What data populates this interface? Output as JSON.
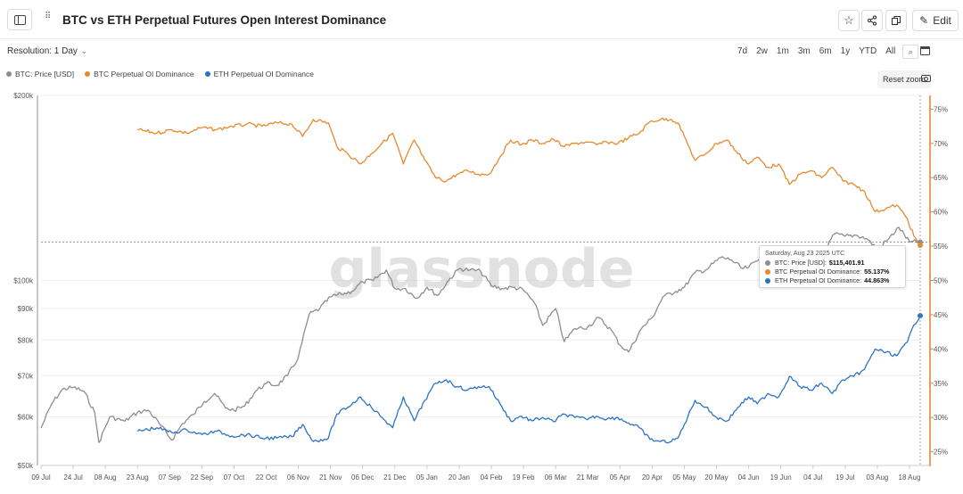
{
  "header": {
    "title": "BTC vs ETH Perpetual Futures Open Interest Dominance",
    "edit_label": "Edit"
  },
  "controls": {
    "resolution_label": "Resolution: 1 Day",
    "ranges": [
      "7d",
      "2w",
      "1m",
      "3m",
      "6m",
      "1y",
      "YTD",
      "All"
    ],
    "reset_zoom": "Reset zoom"
  },
  "legend": [
    {
      "label": "BTC: Price [USD]",
      "color": "#8e8e8e"
    },
    {
      "label": "BTC Perpetual OI Dominance",
      "color": "#e8892c"
    },
    {
      "label": "ETH Perpetual OI Dominance",
      "color": "#2c73c4"
    }
  ],
  "watermark": "glassnode",
  "tooltip": {
    "date": "Saturday, Aug 23 2025 UTC",
    "rows": [
      {
        "label": "BTC: Price [USD]:",
        "value": "$115,401.91",
        "color": "#8e8e8e"
      },
      {
        "label": "BTC Perpetual OI Dominance:",
        "value": "55.137%",
        "color": "#e8892c"
      },
      {
        "label": "ETH Perpetual OI Dominance:",
        "value": "44.863%",
        "color": "#2c73c4"
      }
    ]
  },
  "chart_data": {
    "type": "line",
    "x_tick_labels": [
      "09 Jul",
      "24 Jul",
      "08 Aug",
      "23 Aug",
      "07 Sep",
      "22 Sep",
      "07 Oct",
      "22 Oct",
      "06 Nov",
      "21 Nov",
      "06 Dec",
      "21 Dec",
      "05 Jan",
      "20 Jan",
      "04 Feb",
      "19 Feb",
      "06 Mar",
      "21 Mar",
      "05 Apr",
      "20 Apr",
      "05 May",
      "20 May",
      "04 Jun",
      "19 Jun",
      "04 Jul",
      "19 Jul",
      "03 Aug",
      "18 Aug"
    ],
    "y_left": {
      "scale": "log",
      "ylim": [
        50000,
        200000
      ],
      "ticks": [
        50000,
        60000,
        70000,
        80000,
        90000,
        100000,
        200000
      ],
      "tick_labels": [
        "$50k",
        "$60k",
        "$70k",
        "$80k",
        "$90k",
        "$100k",
        "$200k"
      ]
    },
    "y_right": {
      "ylim": [
        23,
        77
      ],
      "ticks": [
        25,
        30,
        35,
        40,
        45,
        50,
        55,
        60,
        65,
        70,
        75
      ],
      "tick_labels": [
        "25%",
        "30%",
        "35%",
        "40%",
        "45%",
        "50%",
        "55%",
        "60%",
        "65%",
        "70%",
        "75%"
      ]
    },
    "series": [
      {
        "name": "BTC: Price [USD]",
        "axis": "left",
        "color": "#8e8e8e",
        "x": [
          "2024-07-09",
          "2024-07-14",
          "2024-07-19",
          "2024-07-24",
          "2024-07-29",
          "2024-08-03",
          "2024-08-05",
          "2024-08-10",
          "2024-08-17",
          "2024-08-23",
          "2024-08-28",
          "2024-09-03",
          "2024-09-08",
          "2024-09-13",
          "2024-09-18",
          "2024-09-23",
          "2024-09-28",
          "2024-10-03",
          "2024-10-07",
          "2024-10-12",
          "2024-10-17",
          "2024-10-22",
          "2024-10-27",
          "2024-11-01",
          "2024-11-06",
          "2024-11-11",
          "2024-11-16",
          "2024-11-21",
          "2024-11-26",
          "2024-12-01",
          "2024-12-06",
          "2024-12-11",
          "2024-12-17",
          "2024-12-21",
          "2024-12-26",
          "2024-12-31",
          "2025-01-05",
          "2025-01-10",
          "2025-01-15",
          "2025-01-20",
          "2025-01-25",
          "2025-01-30",
          "2025-02-04",
          "2025-02-09",
          "2025-02-14",
          "2025-02-19",
          "2025-02-24",
          "2025-02-28",
          "2025-03-06",
          "2025-03-10",
          "2025-03-15",
          "2025-03-21",
          "2025-03-26",
          "2025-04-01",
          "2025-04-05",
          "2025-04-09",
          "2025-04-15",
          "2025-04-20",
          "2025-04-25",
          "2025-05-01",
          "2025-05-05",
          "2025-05-10",
          "2025-05-15",
          "2025-05-22",
          "2025-05-27",
          "2025-06-01",
          "2025-06-04",
          "2025-06-09",
          "2025-06-14",
          "2025-06-19",
          "2025-06-24",
          "2025-06-29",
          "2025-07-04",
          "2025-07-09",
          "2025-07-14",
          "2025-07-19",
          "2025-07-24",
          "2025-07-29",
          "2025-08-03",
          "2025-08-08",
          "2025-08-13",
          "2025-08-18",
          "2025-08-23"
        ],
        "y": [
          57500,
          63000,
          66500,
          67000,
          66000,
          61000,
          54500,
          60000,
          59000,
          61000,
          61500,
          58000,
          55000,
          58500,
          60500,
          63500,
          65500,
          62000,
          61500,
          62500,
          66000,
          68000,
          67500,
          70000,
          75000,
          88000,
          90000,
          94000,
          95000,
          96000,
          99500,
          100000,
          104000,
          97000,
          97000,
          93500,
          97500,
          94500,
          100000,
          104500,
          104000,
          103500,
          98000,
          97000,
          97500,
          96500,
          92000,
          84500,
          90000,
          79500,
          83500,
          84000,
          87000,
          83000,
          78500,
          76500,
          83500,
          87000,
          94000,
          96000,
          97500,
          103000,
          104000,
          109000,
          108000,
          104500,
          105000,
          108500,
          106000,
          105000,
          105000,
          107500,
          108000,
          111000,
          119000,
          118000,
          118500,
          117000,
          112500,
          116500,
          122000,
          115500,
          115402
        ]
      },
      {
        "name": "BTC Perpetual OI Dominance",
        "axis": "right",
        "color": "#e8892c",
        "x": [
          "2024-08-23",
          "2024-09-01",
          "2024-09-08",
          "2024-09-15",
          "2024-09-22",
          "2024-09-29",
          "2024-10-06",
          "2024-10-13",
          "2024-10-20",
          "2024-10-27",
          "2024-11-03",
          "2024-11-08",
          "2024-11-13",
          "2024-11-20",
          "2024-11-24",
          "2024-11-29",
          "2024-12-05",
          "2024-12-10",
          "2024-12-15",
          "2024-12-20",
          "2024-12-25",
          "2024-12-30",
          "2025-01-04",
          "2025-01-09",
          "2025-01-14",
          "2025-01-19",
          "2025-01-24",
          "2025-01-29",
          "2025-02-03",
          "2025-02-08",
          "2025-02-13",
          "2025-02-18",
          "2025-02-23",
          "2025-02-28",
          "2025-03-05",
          "2025-03-10",
          "2025-03-15",
          "2025-03-20",
          "2025-03-25",
          "2025-03-30",
          "2025-04-04",
          "2025-04-09",
          "2025-04-14",
          "2025-04-19",
          "2025-04-24",
          "2025-04-29",
          "2025-05-02",
          "2025-05-05",
          "2025-05-10",
          "2025-05-15",
          "2025-05-20",
          "2025-05-25",
          "2025-05-30",
          "2025-06-04",
          "2025-06-08",
          "2025-06-13",
          "2025-06-18",
          "2025-06-23",
          "2025-06-28",
          "2025-07-03",
          "2025-07-08",
          "2025-07-13",
          "2025-07-18",
          "2025-07-23",
          "2025-07-28",
          "2025-08-02",
          "2025-08-07",
          "2025-08-12",
          "2025-08-17",
          "2025-08-20",
          "2025-08-23"
        ],
        "y": [
          72,
          71.5,
          72,
          71.5,
          72.3,
          72,
          72.5,
          72.8,
          72.5,
          73,
          72.8,
          71,
          73.5,
          73,
          69.5,
          68.5,
          67,
          68.5,
          70,
          71.5,
          67,
          70.5,
          67.5,
          65,
          64.5,
          65.5,
          66,
          65.5,
          65.5,
          68,
          70.5,
          69.8,
          70.5,
          70,
          70.6,
          69.5,
          70,
          70.2,
          69.8,
          70.2,
          70,
          70.8,
          71.5,
          73.2,
          73.5,
          73.5,
          73,
          71,
          67.5,
          68.5,
          70,
          70.5,
          68.5,
          67,
          68,
          66.5,
          67,
          64,
          65.5,
          66,
          65,
          66.5,
          64.5,
          64,
          63,
          60,
          60.5,
          61,
          59,
          56.5,
          55.137
        ]
      },
      {
        "name": "ETH Perpetual OI Dominance",
        "axis": "right",
        "color": "#2c73c4",
        "x": [
          "2024-08-23",
          "2024-09-01",
          "2024-09-08",
          "2024-09-15",
          "2024-09-22",
          "2024-09-29",
          "2024-10-06",
          "2024-10-13",
          "2024-10-20",
          "2024-10-27",
          "2024-11-03",
          "2024-11-08",
          "2024-11-13",
          "2024-11-20",
          "2024-11-24",
          "2024-11-29",
          "2024-12-05",
          "2024-12-10",
          "2024-12-15",
          "2024-12-20",
          "2024-12-25",
          "2024-12-30",
          "2025-01-04",
          "2025-01-09",
          "2025-01-14",
          "2025-01-19",
          "2025-01-24",
          "2025-01-29",
          "2025-02-03",
          "2025-02-08",
          "2025-02-13",
          "2025-02-18",
          "2025-02-23",
          "2025-02-28",
          "2025-03-05",
          "2025-03-10",
          "2025-03-15",
          "2025-03-20",
          "2025-03-25",
          "2025-03-30",
          "2025-04-04",
          "2025-04-09",
          "2025-04-14",
          "2025-04-19",
          "2025-04-24",
          "2025-04-29",
          "2025-05-02",
          "2025-05-05",
          "2025-05-10",
          "2025-05-15",
          "2025-05-20",
          "2025-05-25",
          "2025-05-30",
          "2025-06-04",
          "2025-06-08",
          "2025-06-13",
          "2025-06-18",
          "2025-06-23",
          "2025-06-28",
          "2025-07-03",
          "2025-07-08",
          "2025-07-13",
          "2025-07-18",
          "2025-07-23",
          "2025-07-28",
          "2025-08-02",
          "2025-08-07",
          "2025-08-12",
          "2025-08-17",
          "2025-08-20",
          "2025-08-23"
        ],
        "y": [
          28,
          28.5,
          27.8,
          28.2,
          27.5,
          28,
          27.3,
          27.5,
          27,
          27,
          27.2,
          29,
          26.5,
          27,
          30.5,
          31.5,
          33,
          31.5,
          30,
          28.5,
          33,
          29.5,
          32.5,
          35,
          35.5,
          34.5,
          34,
          34.5,
          34.5,
          32,
          29.5,
          30.2,
          29.5,
          30,
          29.4,
          30.5,
          30,
          29.8,
          30.2,
          29.8,
          30,
          29.2,
          28.5,
          26.8,
          26.5,
          26.5,
          27,
          29,
          32.5,
          31.5,
          30,
          29.5,
          31.5,
          33,
          32,
          33.5,
          33,
          36,
          34.5,
          34,
          35,
          33.5,
          35.5,
          36,
          37,
          40,
          39.5,
          39,
          41,
          43.5,
          44.863
        ]
      }
    ]
  }
}
